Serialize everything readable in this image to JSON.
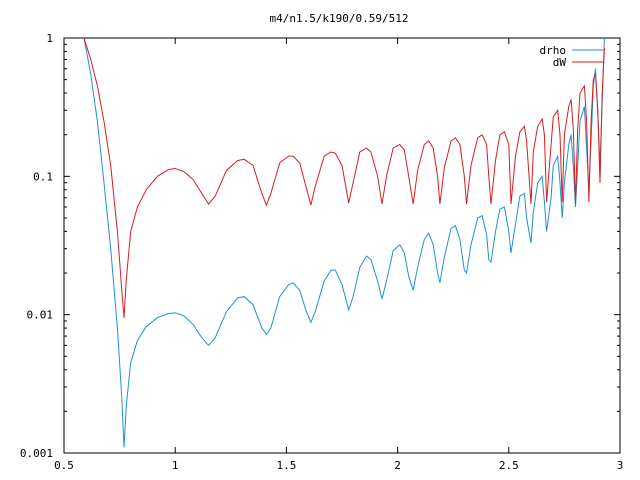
{
  "chart_data": {
    "type": "line",
    "title": "m4/n1.5/k190/0.59/512",
    "xlabel": "",
    "ylabel": "",
    "xlim": [
      0.5,
      3
    ],
    "ylim": [
      0.001,
      1
    ],
    "yscale": "log",
    "grid": false,
    "legend_position": "top-right",
    "x_ticks": [
      {
        "value": 0.5,
        "label": "0.5"
      },
      {
        "value": 1,
        "label": "1"
      },
      {
        "value": 1.5,
        "label": "1.5"
      },
      {
        "value": 2,
        "label": "2"
      },
      {
        "value": 2.5,
        "label": "2.5"
      },
      {
        "value": 3,
        "label": "3"
      }
    ],
    "y_ticks": [
      {
        "value": 0.001,
        "label": "0.001"
      },
      {
        "value": 0.01,
        "label": "0.01"
      },
      {
        "value": 0.1,
        "label": "0.1"
      },
      {
        "value": 1,
        "label": "1"
      }
    ],
    "series": [
      {
        "name": "drho",
        "color": "#1e90d8",
        "points": [
          [
            0.59,
            1.0
          ],
          [
            0.62,
            0.55
          ],
          [
            0.65,
            0.25
          ],
          [
            0.68,
            0.09
          ],
          [
            0.71,
            0.03
          ],
          [
            0.74,
            0.008
          ],
          [
            0.76,
            0.0025
          ],
          [
            0.77,
            0.0011
          ],
          [
            0.78,
            0.0022
          ],
          [
            0.8,
            0.0045
          ],
          [
            0.83,
            0.0065
          ],
          [
            0.87,
            0.0082
          ],
          [
            0.92,
            0.0095
          ],
          [
            0.97,
            0.0102
          ],
          [
            1.0,
            0.0103
          ],
          [
            1.04,
            0.0098
          ],
          [
            1.08,
            0.0085
          ],
          [
            1.12,
            0.0068
          ],
          [
            1.15,
            0.006
          ],
          [
            1.18,
            0.0068
          ],
          [
            1.23,
            0.0105
          ],
          [
            1.28,
            0.0132
          ],
          [
            1.31,
            0.0135
          ],
          [
            1.35,
            0.0118
          ],
          [
            1.39,
            0.008
          ],
          [
            1.41,
            0.0072
          ],
          [
            1.43,
            0.008
          ],
          [
            1.47,
            0.0135
          ],
          [
            1.51,
            0.0165
          ],
          [
            1.53,
            0.017
          ],
          [
            1.56,
            0.015
          ],
          [
            1.59,
            0.0105
          ],
          [
            1.61,
            0.0088
          ],
          [
            1.63,
            0.0105
          ],
          [
            1.67,
            0.0175
          ],
          [
            1.7,
            0.021
          ],
          [
            1.72,
            0.021
          ],
          [
            1.75,
            0.0165
          ],
          [
            1.78,
            0.0108
          ],
          [
            1.8,
            0.0135
          ],
          [
            1.83,
            0.022
          ],
          [
            1.86,
            0.0265
          ],
          [
            1.88,
            0.025
          ],
          [
            1.91,
            0.0175
          ],
          [
            1.93,
            0.013
          ],
          [
            1.95,
            0.0175
          ],
          [
            1.98,
            0.029
          ],
          [
            2.01,
            0.032
          ],
          [
            2.03,
            0.028
          ],
          [
            2.05,
            0.019
          ],
          [
            2.07,
            0.015
          ],
          [
            2.09,
            0.022
          ],
          [
            2.12,
            0.035
          ],
          [
            2.14,
            0.039
          ],
          [
            2.16,
            0.032
          ],
          [
            2.18,
            0.02
          ],
          [
            2.19,
            0.017
          ],
          [
            2.21,
            0.026
          ],
          [
            2.24,
            0.042
          ],
          [
            2.26,
            0.044
          ],
          [
            2.28,
            0.035
          ],
          [
            2.3,
            0.021
          ],
          [
            2.31,
            0.02
          ],
          [
            2.33,
            0.032
          ],
          [
            2.36,
            0.05
          ],
          [
            2.38,
            0.052
          ],
          [
            2.4,
            0.038
          ],
          [
            2.41,
            0.025
          ],
          [
            2.42,
            0.024
          ],
          [
            2.44,
            0.04
          ],
          [
            2.46,
            0.058
          ],
          [
            2.48,
            0.06
          ],
          [
            2.5,
            0.04
          ],
          [
            2.51,
            0.028
          ],
          [
            2.53,
            0.045
          ],
          [
            2.55,
            0.072
          ],
          [
            2.57,
            0.075
          ],
          [
            2.58,
            0.05
          ],
          [
            2.6,
            0.033
          ],
          [
            2.61,
            0.055
          ],
          [
            2.63,
            0.09
          ],
          [
            2.65,
            0.1
          ],
          [
            2.66,
            0.065
          ],
          [
            2.67,
            0.04
          ],
          [
            2.69,
            0.07
          ],
          [
            2.7,
            0.12
          ],
          [
            2.72,
            0.14
          ],
          [
            2.73,
            0.09
          ],
          [
            2.74,
            0.05
          ],
          [
            2.75,
            0.09
          ],
          [
            2.77,
            0.17
          ],
          [
            2.78,
            0.2
          ],
          [
            2.79,
            0.12
          ],
          [
            2.8,
            0.06
          ],
          [
            2.81,
            0.12
          ],
          [
            2.82,
            0.25
          ],
          [
            2.84,
            0.32
          ],
          [
            2.85,
            0.16
          ],
          [
            2.86,
            0.08
          ],
          [
            2.87,
            0.18
          ],
          [
            2.88,
            0.45
          ],
          [
            2.89,
            0.6
          ],
          [
            2.9,
            0.28
          ],
          [
            2.91,
            0.12
          ],
          [
            2.92,
            0.35
          ],
          [
            2.93,
            1.0
          ]
        ]
      },
      {
        "name": "dW",
        "color": "#d81e1e",
        "points": [
          [
            0.59,
            1.0
          ],
          [
            0.62,
            0.7
          ],
          [
            0.65,
            0.45
          ],
          [
            0.68,
            0.25
          ],
          [
            0.71,
            0.12
          ],
          [
            0.74,
            0.04
          ],
          [
            0.76,
            0.015
          ],
          [
            0.77,
            0.0095
          ],
          [
            0.78,
            0.018
          ],
          [
            0.8,
            0.04
          ],
          [
            0.83,
            0.06
          ],
          [
            0.87,
            0.08
          ],
          [
            0.92,
            0.1
          ],
          [
            0.97,
            0.112
          ],
          [
            1.0,
            0.114
          ],
          [
            1.04,
            0.108
          ],
          [
            1.08,
            0.095
          ],
          [
            1.12,
            0.075
          ],
          [
            1.15,
            0.063
          ],
          [
            1.18,
            0.072
          ],
          [
            1.23,
            0.11
          ],
          [
            1.28,
            0.13
          ],
          [
            1.31,
            0.133
          ],
          [
            1.35,
            0.12
          ],
          [
            1.39,
            0.075
          ],
          [
            1.41,
            0.062
          ],
          [
            1.43,
            0.075
          ],
          [
            1.47,
            0.125
          ],
          [
            1.51,
            0.14
          ],
          [
            1.53,
            0.14
          ],
          [
            1.56,
            0.125
          ],
          [
            1.59,
            0.082
          ],
          [
            1.61,
            0.062
          ],
          [
            1.63,
            0.085
          ],
          [
            1.67,
            0.14
          ],
          [
            1.7,
            0.15
          ],
          [
            1.72,
            0.147
          ],
          [
            1.75,
            0.12
          ],
          [
            1.78,
            0.064
          ],
          [
            1.8,
            0.09
          ],
          [
            1.83,
            0.15
          ],
          [
            1.86,
            0.16
          ],
          [
            1.88,
            0.15
          ],
          [
            1.91,
            0.1
          ],
          [
            1.93,
            0.063
          ],
          [
            1.95,
            0.1
          ],
          [
            1.98,
            0.16
          ],
          [
            2.01,
            0.17
          ],
          [
            2.03,
            0.155
          ],
          [
            2.05,
            0.1
          ],
          [
            2.07,
            0.063
          ],
          [
            2.09,
            0.11
          ],
          [
            2.12,
            0.17
          ],
          [
            2.14,
            0.18
          ],
          [
            2.16,
            0.16
          ],
          [
            2.18,
            0.1
          ],
          [
            2.19,
            0.063
          ],
          [
            2.21,
            0.115
          ],
          [
            2.24,
            0.18
          ],
          [
            2.26,
            0.19
          ],
          [
            2.28,
            0.17
          ],
          [
            2.3,
            0.1
          ],
          [
            2.31,
            0.063
          ],
          [
            2.33,
            0.12
          ],
          [
            2.36,
            0.19
          ],
          [
            2.38,
            0.2
          ],
          [
            2.4,
            0.17
          ],
          [
            2.41,
            0.1
          ],
          [
            2.42,
            0.063
          ],
          [
            2.44,
            0.13
          ],
          [
            2.46,
            0.2
          ],
          [
            2.48,
            0.21
          ],
          [
            2.5,
            0.17
          ],
          [
            2.51,
            0.063
          ],
          [
            2.53,
            0.14
          ],
          [
            2.55,
            0.21
          ],
          [
            2.57,
            0.23
          ],
          [
            2.58,
            0.18
          ],
          [
            2.6,
            0.063
          ],
          [
            2.61,
            0.15
          ],
          [
            2.63,
            0.23
          ],
          [
            2.65,
            0.26
          ],
          [
            2.66,
            0.2
          ],
          [
            2.67,
            0.065
          ],
          [
            2.69,
            0.17
          ],
          [
            2.7,
            0.27
          ],
          [
            2.72,
            0.3
          ],
          [
            2.73,
            0.2
          ],
          [
            2.74,
            0.065
          ],
          [
            2.75,
            0.2
          ],
          [
            2.77,
            0.32
          ],
          [
            2.78,
            0.36
          ],
          [
            2.79,
            0.22
          ],
          [
            2.8,
            0.063
          ],
          [
            2.81,
            0.22
          ],
          [
            2.82,
            0.4
          ],
          [
            2.84,
            0.45
          ],
          [
            2.85,
            0.25
          ],
          [
            2.86,
            0.065
          ],
          [
            2.87,
            0.25
          ],
          [
            2.88,
            0.5
          ],
          [
            2.89,
            0.55
          ],
          [
            2.9,
            0.3
          ],
          [
            2.91,
            0.09
          ],
          [
            2.92,
            0.4
          ],
          [
            2.93,
            0.85
          ]
        ]
      }
    ]
  }
}
